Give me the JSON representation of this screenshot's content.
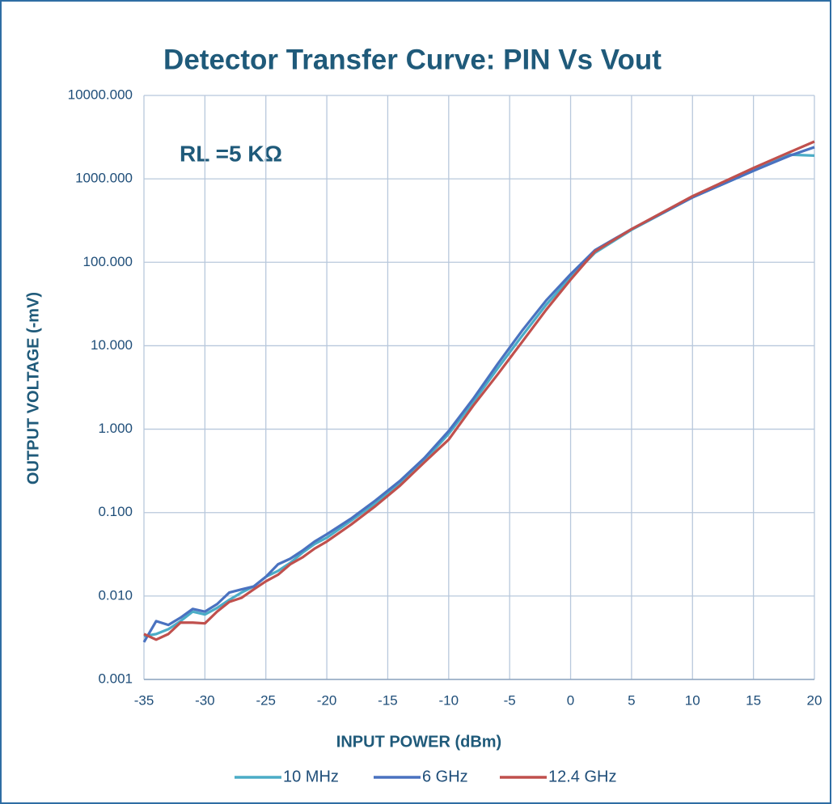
{
  "chart_data": {
    "type": "line",
    "title": "Detector Transfer Curve: PIN Vs Vout",
    "annotation": "RL =5 KΩ",
    "x_label": "INPUT POWER (dBm)",
    "y_label": "OUTPUT VOLTAGE (-mV)",
    "log_y": true,
    "grid": true,
    "legend": "bottom",
    "xlim": [
      -35,
      20
    ],
    "xticks": [
      -35,
      -30,
      -25,
      -20,
      -15,
      -10,
      -5,
      0,
      5,
      10,
      15,
      20
    ],
    "ylim": [
      0.001,
      10000
    ],
    "yticks": [
      {
        "value": 0.001,
        "label": "0.001"
      },
      {
        "value": 0.01,
        "label": "0.010"
      },
      {
        "value": 0.1,
        "label": "0.100"
      },
      {
        "value": 1,
        "label": "1.000"
      },
      {
        "value": 10,
        "label": "10.000"
      },
      {
        "value": 100,
        "label": "100.000"
      },
      {
        "value": 1000,
        "label": "1000.000"
      },
      {
        "value": 10000,
        "label": "10000.000"
      }
    ],
    "x": [
      -35,
      -34,
      -33,
      -32,
      -31,
      -30,
      -29,
      -28,
      -27,
      -26,
      -25,
      -24,
      -23,
      -22,
      -21,
      -20,
      -18,
      -16,
      -14,
      -12,
      -10,
      -8,
      -6,
      -4,
      -2,
      0,
      2,
      5,
      10,
      15,
      18,
      20
    ],
    "series": [
      {
        "name": "10 MHz",
        "color": "#4bacc6",
        "values": [
          0.0033,
          0.0035,
          0.004,
          0.005,
          0.0065,
          0.006,
          0.0072,
          0.009,
          0.011,
          0.013,
          0.017,
          0.02,
          0.025,
          0.033,
          0.042,
          0.05,
          0.08,
          0.13,
          0.22,
          0.42,
          0.88,
          2.1,
          5.3,
          13,
          31,
          66,
          130,
          245,
          600,
          1250,
          1950,
          1900
        ]
      },
      {
        "name": "6 GHz",
        "color": "#4a72c0",
        "values": [
          0.0028,
          0.005,
          0.0045,
          0.0055,
          0.007,
          0.0065,
          0.008,
          0.011,
          0.012,
          0.013,
          0.017,
          0.024,
          0.028,
          0.035,
          0.045,
          0.055,
          0.085,
          0.14,
          0.24,
          0.45,
          0.95,
          2.3,
          6,
          15,
          35,
          72,
          140,
          250,
          600,
          1250,
          1900,
          2400
        ]
      },
      {
        "name": "12.4 GHz",
        "color": "#c0504d",
        "values": [
          0.0035,
          0.003,
          0.0035,
          0.0048,
          0.0048,
          0.0047,
          0.0065,
          0.0085,
          0.0095,
          0.012,
          0.015,
          0.018,
          0.024,
          0.029,
          0.037,
          0.045,
          0.072,
          0.12,
          0.21,
          0.4,
          0.75,
          1.9,
          4.5,
          11,
          27,
          62,
          135,
          250,
          620,
          1350,
          2100,
          2800
        ]
      }
    ]
  }
}
